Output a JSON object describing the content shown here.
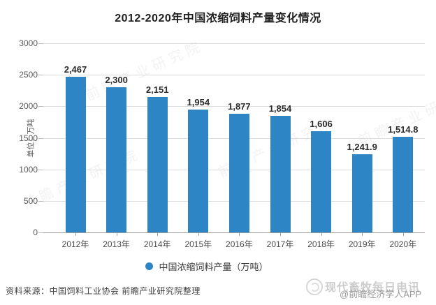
{
  "title": "2012-2020年中国浓缩饲料产量变化情况",
  "chart_data": {
    "type": "bar",
    "title": "2012-2020年中国浓缩饲料产量变化情况",
    "categories": [
      "2012年",
      "2013年",
      "2014年",
      "2015年",
      "2016年",
      "2017年",
      "2018年",
      "2019年",
      "2020年"
    ],
    "values": [
      2467,
      2300,
      2151,
      1954,
      1877,
      1854,
      1606,
      1241.9,
      1514.8
    ],
    "value_labels": [
      "2,467",
      "2,300",
      "2,151",
      "1,954",
      "1,877",
      "1,854",
      "1,606",
      "1,241.9",
      "1,514.8"
    ],
    "xlabel": "",
    "ylabel": "单位：万吨",
    "ylim": [
      0,
      3000
    ],
    "yticks": [
      0,
      500,
      1000,
      1500,
      2000,
      2500,
      3000
    ],
    "grid": true,
    "legend_position": "bottom",
    "legend_entries": [
      "中国浓缩饲料产量（万吨）"
    ],
    "bar_color": "#2e85c6"
  },
  "legend": {
    "label": "中国浓缩饲料产量（万吨）"
  },
  "source_note": "资料来源：中国饲料工业协会 前瞻产业研究院整理",
  "watermark": {
    "diagonal_text": "前瞻产业研究院",
    "brand": "现代畜牧每日电讯",
    "credit": "@前瞻经济学人APP"
  },
  "colors": {
    "bar": "#2e85c6",
    "grid": "#dedede",
    "axis": "#9f9f9f",
    "title_text": "#1f1f1f",
    "value_text": "#2b2b2b",
    "tick_text": "#595959"
  }
}
